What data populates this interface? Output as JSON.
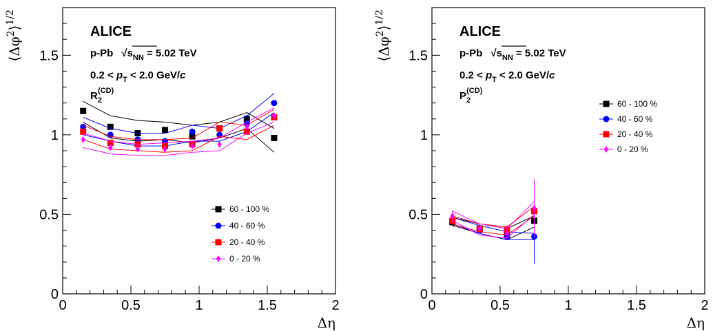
{
  "chart_data": [
    {
      "type": "scatter",
      "experiment": "ALICE",
      "system_label": "p-Pb",
      "energy_label": "√s_NN = 5.02 TeV",
      "energy_parts": {
        "sqrt": "√",
        "s": "s",
        "sub": "NN",
        "rest": " = 5.02 TeV"
      },
      "pt_label": "0.2 < p_T < 2.0 GeV/c",
      "pt_parts": {
        "pre": "0.2 < ",
        "p": "p",
        "sub": "T",
        "mid": " < 2.0 GeV/",
        "c": "c"
      },
      "observable": "R_2^(CD)",
      "observable_parts": {
        "main": "R",
        "sub": "2",
        "sup": "(CD)"
      },
      "xlabel": "Δη",
      "ylabel": "⟨Δφ²⟩^1/2",
      "ylabel_parts": {
        "open": "⟨",
        "phi": "Δφ",
        "sup2": "2",
        "close": "⟩",
        "sup": "1/2"
      },
      "xlim": [
        0,
        2
      ],
      "ylim": [
        0,
        1.8
      ],
      "xticks": [
        0,
        0.5,
        1,
        1.5,
        2
      ],
      "xtick_labels": [
        "0",
        "0.5",
        "1",
        "1.5",
        "2"
      ],
      "yticks": [
        0,
        0.5,
        1,
        1.5
      ],
      "ytick_labels": [
        "0",
        "0.5",
        "1",
        "1.5"
      ],
      "legend_position": "bottom-right",
      "x": [
        0.15,
        0.35,
        0.55,
        0.75,
        0.95,
        1.15,
        1.35,
        1.55
      ],
      "series": [
        {
          "name": "60 - 100 %",
          "color": "#000000",
          "marker": "square",
          "y": [
            1.15,
            1.05,
            1.01,
            1.03,
            0.99,
            1.04,
            1.1,
            0.98
          ],
          "band_upper": [
            1.21,
            1.12,
            1.09,
            1.08,
            1.06,
            1.08,
            1.14,
            1.04
          ],
          "band_lower": [
            1.08,
            0.98,
            0.96,
            0.97,
            0.95,
            0.98,
            1.04,
            0.89
          ]
        },
        {
          "name": "40 - 60 %",
          "color": "#0000ff",
          "marker": "circle",
          "y": [
            1.05,
            1.0,
            0.97,
            0.96,
            1.02,
            1.0,
            1.07,
            1.2
          ],
          "band_upper": [
            1.11,
            1.04,
            1.01,
            1.01,
            1.06,
            1.04,
            1.12,
            1.26
          ],
          "band_lower": [
            1.0,
            0.96,
            0.93,
            0.93,
            0.96,
            0.96,
            1.02,
            1.14
          ]
        },
        {
          "name": "20 - 40 %",
          "color": "#ff0000",
          "marker": "square",
          "y": [
            1.02,
            0.95,
            0.94,
            0.93,
            0.94,
            1.04,
            1.02,
            1.11
          ],
          "band_upper": [
            1.06,
            0.99,
            0.97,
            0.97,
            0.98,
            1.08,
            1.06,
            1.16
          ],
          "band_lower": [
            0.97,
            0.91,
            0.9,
            0.89,
            0.9,
            0.99,
            0.97,
            1.06
          ]
        },
        {
          "name": "0 - 20 %",
          "color": "#ff00ff",
          "marker": "diamond",
          "y": [
            0.97,
            0.92,
            0.91,
            0.91,
            0.93,
            0.94,
            1.05,
            1.12
          ],
          "band_upper": [
            1.01,
            0.96,
            0.94,
            0.95,
            0.96,
            0.98,
            1.08,
            1.17
          ],
          "band_lower": [
            0.92,
            0.88,
            0.87,
            0.87,
            0.89,
            0.9,
            1.01,
            1.08
          ]
        }
      ]
    },
    {
      "type": "scatter",
      "experiment": "ALICE",
      "system_label": "p-Pb",
      "energy_label": "√s_NN = 5.02 TeV",
      "energy_parts": {
        "sqrt": "√",
        "s": "s",
        "sub": "NN",
        "rest": " = 5.02 TeV"
      },
      "pt_label": "0.2 < p_T < 2.0 GeV/c",
      "pt_parts": {
        "pre": "0.2 < ",
        "p": "p",
        "sub": "T",
        "mid": " < 2.0 GeV/",
        "c": "c"
      },
      "observable": "P_2^(CD)",
      "observable_parts": {
        "main": "P",
        "sub": "2",
        "sup": "(CD)"
      },
      "xlabel": "Δη",
      "ylabel": "⟨Δφ²⟩^1/2",
      "ylabel_parts": {
        "open": "⟨",
        "phi": "Δφ",
        "sup2": "2",
        "close": "⟩",
        "sup": "1/2"
      },
      "xlim": [
        0,
        2
      ],
      "ylim": [
        0,
        1.8
      ],
      "xticks": [
        0,
        0.5,
        1,
        1.5,
        2
      ],
      "xtick_labels": [
        "0",
        "0.5",
        "1",
        "1.5",
        "2"
      ],
      "yticks": [
        0,
        0.5,
        1,
        1.5
      ],
      "ytick_labels": [
        "0",
        "0.5",
        "1",
        "1.5"
      ],
      "legend_position": "top-right",
      "x": [
        0.15,
        0.35,
        0.55,
        0.75
      ],
      "series": [
        {
          "name": "60 - 100 %",
          "color": "#000000",
          "marker": "square",
          "y": [
            0.45,
            0.41,
            0.37,
            0.46
          ],
          "band_upper": [
            0.48,
            0.44,
            0.41,
            0.49
          ],
          "band_lower": [
            0.43,
            0.38,
            0.34,
            0.42
          ],
          "err": [
            0.02,
            0.02,
            0.03,
            0.05
          ]
        },
        {
          "name": "40 - 60 %",
          "color": "#0000ff",
          "marker": "circle",
          "y": [
            0.46,
            0.4,
            0.36,
            0.36
          ],
          "band_upper": [
            0.48,
            0.43,
            0.39,
            0.38
          ],
          "band_lower": [
            0.44,
            0.38,
            0.34,
            0.34
          ],
          "err": [
            0.02,
            0.02,
            0.02,
            0.17
          ]
        },
        {
          "name": "20 - 40 %",
          "color": "#ff0000",
          "marker": "square",
          "y": [
            0.46,
            0.41,
            0.4,
            0.52
          ],
          "band_upper": [
            0.49,
            0.44,
            0.42,
            0.55
          ],
          "band_lower": [
            0.44,
            0.39,
            0.37,
            0.49
          ],
          "err": [
            0.02,
            0.02,
            0.03,
            0.15
          ]
        },
        {
          "name": "0 - 20 %",
          "color": "#ff00ff",
          "marker": "diamond",
          "y": [
            0.49,
            0.41,
            0.38,
            0.54
          ],
          "band_upper": [
            0.52,
            0.44,
            0.41,
            0.58
          ],
          "band_lower": [
            0.46,
            0.37,
            0.35,
            0.5
          ],
          "err": [
            0.03,
            0.03,
            0.04,
            0.18
          ]
        }
      ]
    }
  ]
}
